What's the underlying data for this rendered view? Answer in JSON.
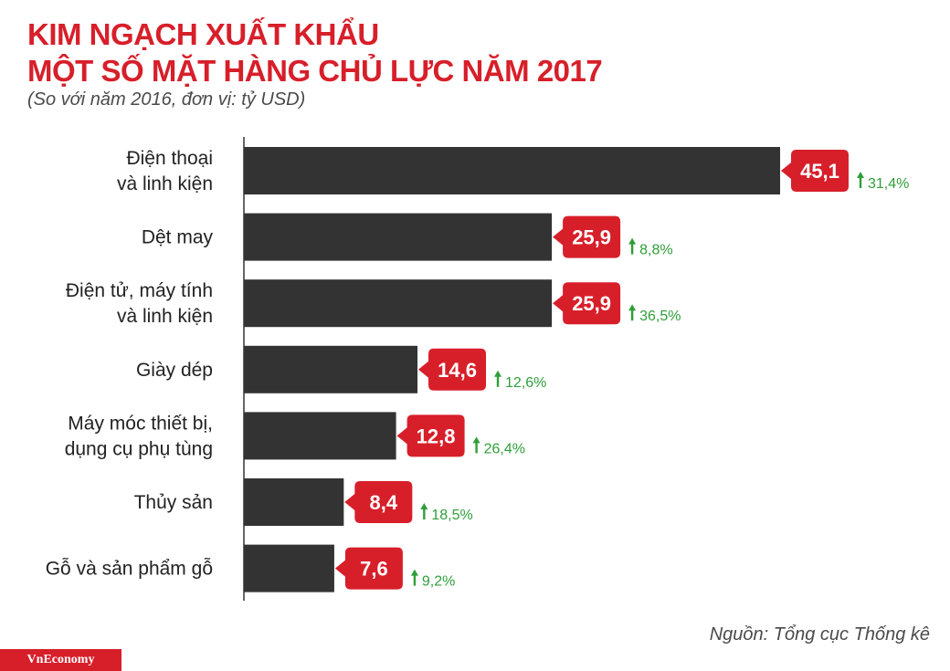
{
  "header": {
    "title_line1": "KIM NGẠCH XUẤT KHẨU",
    "title_line2": "MỘT SỐ MẶT HÀNG CHỦ LỰC NĂM 2017",
    "subtitle": "(So với năm 2016, đơn vị: tỷ USD)"
  },
  "footer": {
    "source": "Nguồn: Tổng cục Thống kê",
    "logo_text": "VnEconomy"
  },
  "colors": {
    "title": "#d71f2a",
    "bar": "#333333",
    "value_badge": "#d71f2a",
    "value_text": "#ffffff",
    "change_text": "#2f9e3a",
    "axis": "#333333",
    "label": "#222222",
    "logo_bg": "#d71f2a"
  },
  "chart_data": {
    "type": "bar",
    "orientation": "horizontal",
    "title": "KIM NGẠCH XUẤT KHẨU MỘT SỐ MẶT HÀNG CHỦ LỰC NĂM 2017",
    "subtitle": "(So với năm 2016, đơn vị: tỷ USD)",
    "categories": [
      [
        "Điện thoại",
        "và linh kiện"
      ],
      [
        "Dệt may"
      ],
      [
        "Điện tử, máy tính",
        "và linh kiện"
      ],
      [
        "Giày dép"
      ],
      [
        "Máy móc thiết bị,",
        "dụng cụ phụ tùng"
      ],
      [
        "Thủy sản"
      ],
      [
        "Gỗ và sản phẩm gỗ"
      ]
    ],
    "values": [
      45.1,
      25.9,
      25.9,
      14.6,
      12.8,
      8.4,
      7.6
    ],
    "value_labels": [
      "45,1",
      "25,9",
      "25,9",
      "14,6",
      "12,8",
      "8,4",
      "7,6"
    ],
    "change_labels": [
      "31,4%",
      "8,8%",
      "36,5%",
      "12,6%",
      "26,4%",
      "18,5%",
      "9,2%"
    ],
    "change_direction": [
      "up",
      "up",
      "up",
      "up",
      "up",
      "up",
      "up"
    ],
    "xlim": [
      0,
      45.1
    ],
    "xlabel": "",
    "ylabel": "",
    "grid": false,
    "legend": "none"
  }
}
